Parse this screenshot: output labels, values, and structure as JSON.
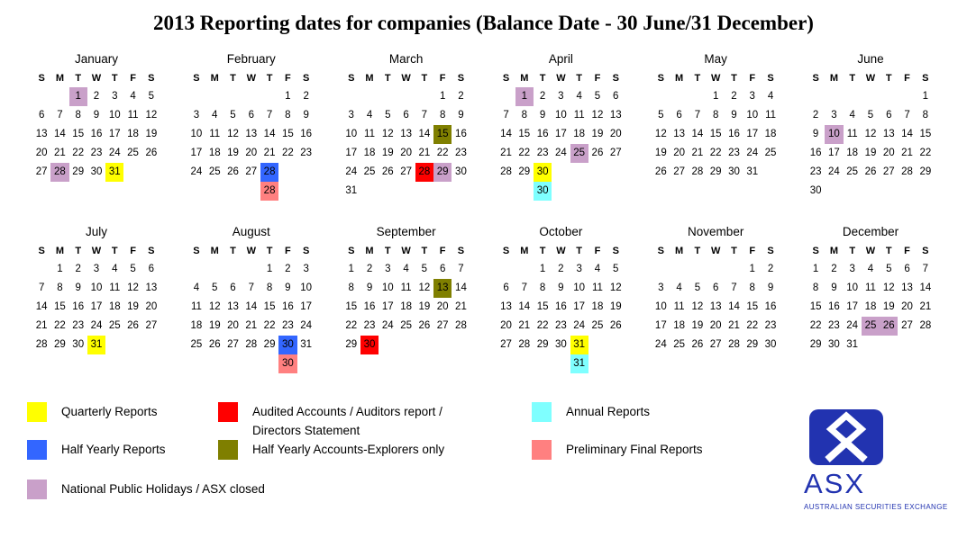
{
  "title": "2013 Reporting dates for companies (Balance Date - 30 June/31 December)",
  "day_headers": [
    "S",
    "M",
    "T",
    "W",
    "T",
    "F",
    "S"
  ],
  "colors": {
    "quarterly": "#FFFF00",
    "audited": "#FF0000",
    "half_yearly": "#3366FF",
    "explorers": "#7F7F00",
    "annual": "#7FFFFF",
    "preliminary": "#FF8080",
    "holiday": "#C9A0C9",
    "asx_blue": "#2233B0"
  },
  "months": [
    {
      "name": "January",
      "rows": [
        [
          null,
          null,
          {
            "d": 1,
            "hl": "holiday"
          },
          2,
          3,
          4,
          5
        ],
        [
          6,
          7,
          8,
          9,
          10,
          11,
          12
        ],
        [
          13,
          14,
          15,
          16,
          17,
          18,
          19
        ],
        [
          20,
          21,
          22,
          23,
          24,
          25,
          26
        ],
        [
          27,
          {
            "d": 28,
            "hl": "holiday"
          },
          29,
          30,
          {
            "d": 31,
            "hl": "quarterly"
          },
          null,
          null
        ]
      ]
    },
    {
      "name": "February",
      "rows": [
        [
          null,
          null,
          null,
          null,
          null,
          1,
          2
        ],
        [
          3,
          4,
          5,
          6,
          7,
          8,
          9
        ],
        [
          10,
          11,
          12,
          13,
          14,
          15,
          16
        ],
        [
          17,
          18,
          19,
          20,
          21,
          22,
          23
        ],
        [
          24,
          25,
          26,
          27,
          {
            "d": 28,
            "hl": "half_yearly"
          },
          null,
          null
        ],
        [
          null,
          null,
          null,
          null,
          {
            "d": 28,
            "hl": "preliminary"
          },
          null,
          null
        ]
      ]
    },
    {
      "name": "March",
      "rows": [
        [
          null,
          null,
          null,
          null,
          null,
          1,
          2
        ],
        [
          3,
          4,
          5,
          6,
          7,
          8,
          9
        ],
        [
          10,
          11,
          12,
          13,
          14,
          {
            "d": 15,
            "hl": "explorers"
          },
          16
        ],
        [
          17,
          18,
          19,
          20,
          21,
          22,
          23
        ],
        [
          24,
          25,
          26,
          27,
          {
            "d": 28,
            "hl": "audited"
          },
          {
            "d": 29,
            "hl": "holiday"
          },
          30
        ],
        [
          31,
          null,
          null,
          null,
          null,
          null,
          null
        ]
      ]
    },
    {
      "name": "April",
      "rows": [
        [
          null,
          {
            "d": 1,
            "hl": "holiday"
          },
          2,
          3,
          4,
          5,
          6
        ],
        [
          7,
          8,
          9,
          10,
          11,
          12,
          13
        ],
        [
          14,
          15,
          16,
          17,
          18,
          19,
          20
        ],
        [
          21,
          22,
          23,
          24,
          {
            "d": 25,
            "hl": "holiday"
          },
          26,
          27
        ],
        [
          28,
          29,
          {
            "d": 30,
            "hl": "quarterly"
          },
          null,
          null,
          null,
          null
        ],
        [
          null,
          null,
          {
            "d": 30,
            "hl": "annual"
          },
          null,
          null,
          null,
          null
        ]
      ]
    },
    {
      "name": "May",
      "rows": [
        [
          null,
          null,
          null,
          1,
          2,
          3,
          4
        ],
        [
          5,
          6,
          7,
          8,
          9,
          10,
          11
        ],
        [
          12,
          13,
          14,
          15,
          16,
          17,
          18
        ],
        [
          19,
          20,
          21,
          22,
          23,
          24,
          25
        ],
        [
          26,
          27,
          28,
          29,
          30,
          31,
          null
        ]
      ]
    },
    {
      "name": "June",
      "rows": [
        [
          null,
          null,
          null,
          null,
          null,
          null,
          1
        ],
        [
          2,
          3,
          4,
          5,
          6,
          7,
          8
        ],
        [
          9,
          {
            "d": 10,
            "hl": "holiday"
          },
          11,
          12,
          13,
          14,
          15
        ],
        [
          16,
          17,
          18,
          19,
          20,
          21,
          22
        ],
        [
          23,
          24,
          25,
          26,
          27,
          28,
          29
        ],
        [
          30,
          null,
          null,
          null,
          null,
          null,
          null
        ]
      ]
    },
    {
      "name": "July",
      "rows": [
        [
          null,
          1,
          2,
          3,
          4,
          5,
          6
        ],
        [
          7,
          8,
          9,
          10,
          11,
          12,
          13
        ],
        [
          14,
          15,
          16,
          17,
          18,
          19,
          20
        ],
        [
          21,
          22,
          23,
          24,
          25,
          26,
          27
        ],
        [
          28,
          29,
          30,
          {
            "d": 31,
            "hl": "quarterly"
          },
          null,
          null,
          null
        ]
      ]
    },
    {
      "name": "August",
      "rows": [
        [
          null,
          null,
          null,
          null,
          1,
          2,
          3
        ],
        [
          4,
          5,
          6,
          7,
          8,
          9,
          10
        ],
        [
          11,
          12,
          13,
          14,
          15,
          16,
          17
        ],
        [
          18,
          19,
          20,
          21,
          22,
          23,
          24
        ],
        [
          25,
          26,
          27,
          28,
          29,
          {
            "d": 30,
            "hl": "half_yearly"
          },
          31
        ],
        [
          null,
          null,
          null,
          null,
          null,
          {
            "d": 30,
            "hl": "preliminary"
          },
          null
        ]
      ]
    },
    {
      "name": "September",
      "rows": [
        [
          1,
          2,
          3,
          4,
          5,
          6,
          7
        ],
        [
          8,
          9,
          10,
          11,
          12,
          {
            "d": 13,
            "hl": "explorers"
          },
          14
        ],
        [
          15,
          16,
          17,
          18,
          19,
          20,
          21
        ],
        [
          22,
          23,
          24,
          25,
          26,
          27,
          28
        ],
        [
          29,
          {
            "d": 30,
            "hl": "audited"
          },
          null,
          null,
          null,
          null,
          null
        ]
      ]
    },
    {
      "name": "October",
      "rows": [
        [
          null,
          null,
          1,
          2,
          3,
          4,
          5
        ],
        [
          6,
          7,
          8,
          9,
          10,
          11,
          12
        ],
        [
          13,
          14,
          15,
          16,
          17,
          18,
          19
        ],
        [
          20,
          21,
          22,
          23,
          24,
          25,
          26
        ],
        [
          27,
          28,
          29,
          30,
          {
            "d": 31,
            "hl": "quarterly"
          },
          null,
          null
        ],
        [
          null,
          null,
          null,
          null,
          {
            "d": 31,
            "hl": "annual"
          },
          null,
          null
        ]
      ]
    },
    {
      "name": "November",
      "rows": [
        [
          null,
          null,
          null,
          null,
          null,
          1,
          2
        ],
        [
          3,
          4,
          5,
          6,
          7,
          8,
          9
        ],
        [
          10,
          11,
          12,
          13,
          14,
          15,
          16
        ],
        [
          17,
          18,
          19,
          20,
          21,
          22,
          23
        ],
        [
          24,
          25,
          26,
          27,
          28,
          29,
          30
        ]
      ]
    },
    {
      "name": "December",
      "rows": [
        [
          1,
          2,
          3,
          4,
          5,
          6,
          7
        ],
        [
          8,
          9,
          10,
          11,
          12,
          13,
          14
        ],
        [
          15,
          16,
          17,
          18,
          19,
          20,
          21
        ],
        [
          22,
          23,
          24,
          {
            "d": 25,
            "hl": "holiday"
          },
          {
            "d": 26,
            "hl": "holiday"
          },
          27,
          28
        ],
        [
          29,
          30,
          31,
          null,
          null,
          null,
          null
        ]
      ]
    }
  ],
  "legend": {
    "columns": [
      [
        {
          "key": "quarterly",
          "label": "Quarterly Reports"
        },
        {
          "key": "half_yearly",
          "label": "Half Yearly Reports"
        },
        {
          "key": "holiday",
          "label": "National Public Holidays / ASX closed"
        }
      ],
      [
        {
          "key": "audited",
          "label": "Audited Accounts / Auditors report / Directors Statement"
        },
        {
          "key": "explorers",
          "label": "Half Yearly Accounts-Explorers only"
        }
      ],
      [
        {
          "key": "annual",
          "label": "Annual Reports"
        },
        {
          "key": "preliminary",
          "label": "Preliminary Final Reports"
        }
      ]
    ]
  },
  "logo": {
    "text": "ASX",
    "subtext": "AUSTRALIAN SECURITIES EXCHANGE"
  }
}
